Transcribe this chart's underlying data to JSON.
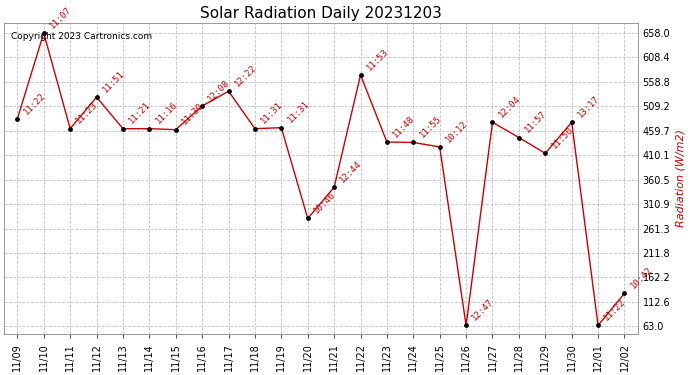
{
  "title": "Solar Radiation Daily 20231203",
  "ylabel": "Radiation (W/m2)",
  "copyright": "Copyright 2023 Cartronics.com",
  "dates": [
    "11/09",
    "11/10",
    "11/11",
    "11/12",
    "11/13",
    "11/14",
    "11/15",
    "11/16",
    "11/17",
    "11/18",
    "11/19",
    "11/20",
    "11/21",
    "11/22",
    "11/23",
    "11/24",
    "11/25",
    "11/26",
    "11/27",
    "11/28",
    "11/29",
    "11/30",
    "12/01",
    "12/02"
  ],
  "values": [
    484,
    658,
    464,
    528,
    464,
    464,
    462,
    510,
    540,
    464,
    466,
    282,
    345,
    573,
    437,
    436,
    427,
    65,
    477,
    446,
    414,
    477,
    65,
    130
  ],
  "labels": [
    "11:22",
    "11:07",
    "11:23",
    "11:51",
    "11:21",
    "11:16",
    "11:30",
    "12:08",
    "12:22",
    "11:31",
    "11:31",
    "10:46",
    "12:44",
    "11:53",
    "11:48",
    "11:55",
    "10:12",
    "12:47",
    "12:04",
    "11:57",
    "11:50",
    "13:17",
    "11:22",
    "10:42"
  ],
  "ymin": 63.0,
  "ymax": 658.0,
  "yticks": [
    63.0,
    112.6,
    162.2,
    211.8,
    261.3,
    310.9,
    360.5,
    410.1,
    459.7,
    509.2,
    558.8,
    608.4,
    658.0
  ],
  "line_color": "#cc0000",
  "marker_color": "#000000",
  "bg_color": "#ffffff",
  "grid_color": "#b0b0b0",
  "title_fontsize": 11,
  "tick_fontsize": 7,
  "label_fontsize": 6.5,
  "ylabel_color": "#cc0000",
  "ylabel_fontsize": 8,
  "copyright_color": "#000000",
  "copyright_fontsize": 6.5
}
